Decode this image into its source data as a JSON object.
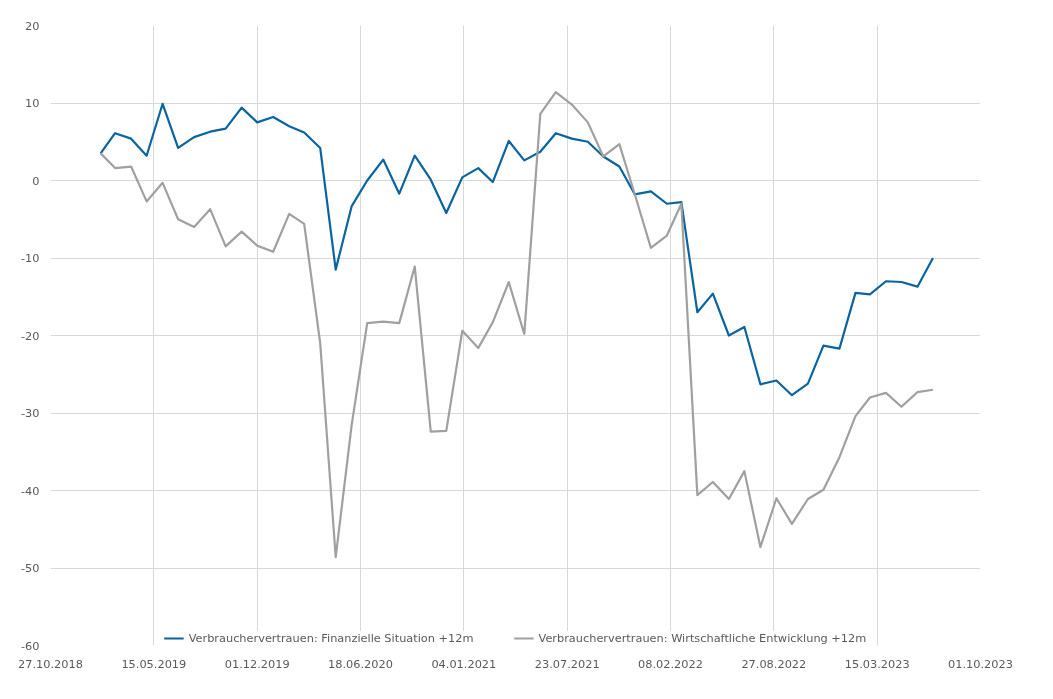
{
  "chart_data": {
    "type": "line",
    "x": [
      "2019-02",
      "2019-03",
      "2019-04",
      "2019-05",
      "2019-06",
      "2019-07",
      "2019-08",
      "2019-09",
      "2019-10",
      "2019-11",
      "2019-12",
      "2020-01",
      "2020-02",
      "2020-03",
      "2020-04",
      "2020-05",
      "2020-06",
      "2020-07",
      "2020-08",
      "2020-09",
      "2020-10",
      "2020-11",
      "2020-12",
      "2021-01",
      "2021-02",
      "2021-03",
      "2021-04",
      "2021-05",
      "2021-06",
      "2021-07",
      "2021-08",
      "2021-09",
      "2021-10",
      "2021-11",
      "2021-12",
      "2022-01",
      "2022-02",
      "2022-03",
      "2022-04",
      "2022-05",
      "2022-06",
      "2022-07",
      "2022-08",
      "2022-09",
      "2022-10",
      "2022-11",
      "2022-12",
      "2023-01",
      "2023-02",
      "2023-03",
      "2023-04",
      "2023-05",
      "2023-06",
      "2023-07"
    ],
    "series": [
      {
        "name": "Verbrauchervertrauen: Finanzielle Situation +12m",
        "color": "#0a64a0",
        "values": [
          3.5,
          6.1,
          5.4,
          3.2,
          9.9,
          4.2,
          5.6,
          6.3,
          6.7,
          9.4,
          7.5,
          8.2,
          7.0,
          6.2,
          4.2,
          -11.5,
          -3.3,
          0.0,
          2.7,
          -1.7,
          3.2,
          0.1,
          -4.2,
          0.4,
          1.6,
          -0.2,
          5.1,
          2.6,
          3.7,
          6.1,
          5.4,
          5.0,
          3.1,
          1.8,
          -1.8,
          -1.4,
          -3.0,
          -2.8,
          -17.0,
          -14.6,
          -20.0,
          -18.9,
          -26.3,
          -25.8,
          -27.7,
          -26.2,
          -21.3,
          -21.7,
          -14.5,
          -14.7,
          -13.0,
          -13.1,
          -13.7,
          -10.0
        ]
      },
      {
        "name": "Verbrauchervertrauen: Wirtschaftliche Entwicklung +12m",
        "color": "#a0a0a0",
        "values": [
          3.5,
          1.6,
          1.8,
          -2.7,
          -0.3,
          -5.0,
          -6.0,
          -3.7,
          -8.5,
          -6.6,
          -8.4,
          -9.2,
          -4.3,
          -5.6,
          -21.0,
          -48.6,
          -31.5,
          -18.4,
          -18.2,
          -18.4,
          -11.1,
          -32.4,
          -32.3,
          -19.4,
          -21.6,
          -18.3,
          -13.1,
          -19.8,
          8.6,
          11.4,
          9.8,
          7.5,
          3.1,
          4.7,
          -1.8,
          -8.7,
          -7.1,
          -3.0,
          -40.6,
          -38.9,
          -41.1,
          -37.5,
          -47.3,
          -41.0,
          -44.3,
          -41.1,
          -39.9,
          -35.7,
          -30.4,
          -28.0,
          -27.4,
          -29.2,
          -27.3,
          -27.0
        ]
      }
    ],
    "xlim": [
      "2018-10-27",
      "2023-10-01"
    ],
    "xticks": [
      {
        "value": "2018-10-27",
        "label": "27.10.2018"
      },
      {
        "value": "2019-05-15",
        "label": "15.05.2019"
      },
      {
        "value": "2019-12-01",
        "label": "01.12.2019"
      },
      {
        "value": "2020-06-18",
        "label": "18.06.2020"
      },
      {
        "value": "2021-01-04",
        "label": "04.01.2021"
      },
      {
        "value": "2021-07-23",
        "label": "23.07.2021"
      },
      {
        "value": "2022-02-08",
        "label": "08.02.2022"
      },
      {
        "value": "2022-08-27",
        "label": "27.08.2022"
      },
      {
        "value": "2023-03-15",
        "label": "15.03.2023"
      },
      {
        "value": "2023-10-01",
        "label": "01.10.2023"
      }
    ],
    "ylim": [
      -60,
      20
    ],
    "yticks": [
      -60,
      -50,
      -40,
      -30,
      -20,
      -10,
      0,
      10,
      20
    ],
    "grid": true,
    "legend": "bottom",
    "line_style": "solid",
    "marker": "none"
  }
}
